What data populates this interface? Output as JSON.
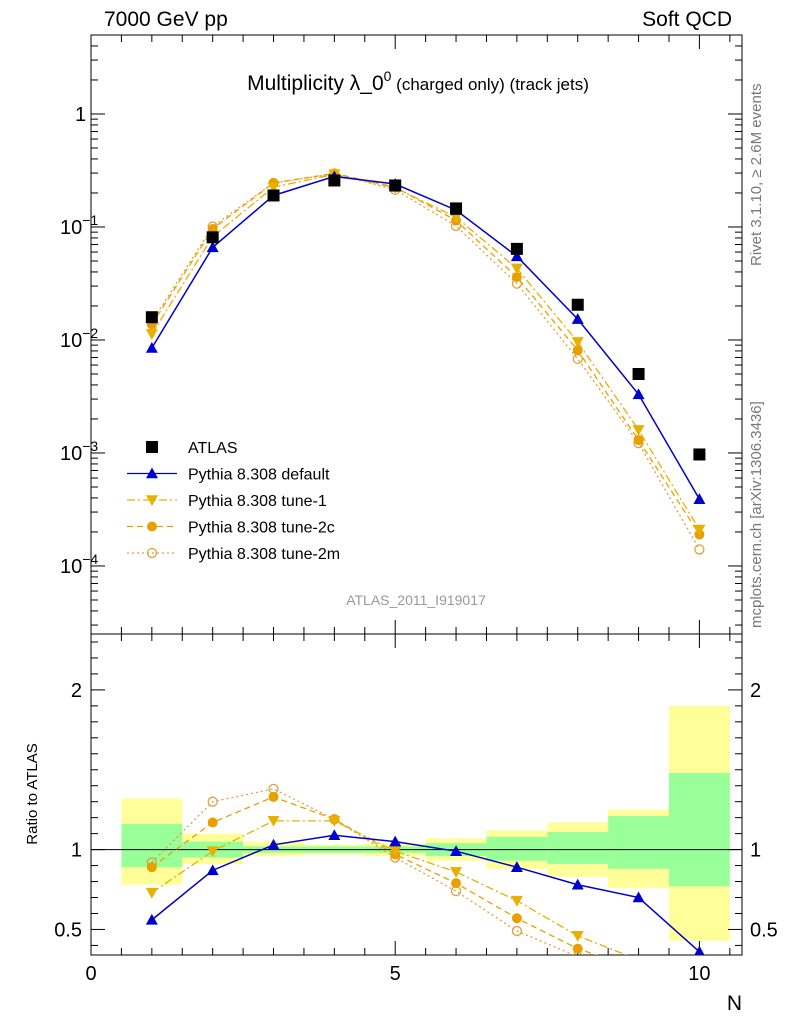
{
  "header": {
    "left": "7000 GeV pp",
    "right": "Soft QCD"
  },
  "side_labels": {
    "rivet": "Rivet 3.1.10, ≥ 2.6M events",
    "mcplots": "mcplots.cern.ch [arXiv:1306.3436]"
  },
  "chart_data": {
    "type": "scatter",
    "title_main": "Multiplicity λ_0",
    "title_sup": "0",
    "title_sub": "(charged only) (track jets)",
    "analysis": "ATLAS_2011_I919017",
    "xlabel": "N",
    "ylabel_ratio": "Ratio to ATLAS",
    "xlim": [
      0,
      10.7
    ],
    "ylim_main": [
      2.5e-05,
      5
    ],
    "ylim_ratio": [
      0.34,
      2.35
    ],
    "yscale_main": "log",
    "x_ticks": [
      "0",
      "5",
      "10"
    ],
    "y_ticks_main": [
      {
        "base": "1",
        "exp": ""
      },
      {
        "base": "10",
        "exp": "−1"
      },
      {
        "base": "10",
        "exp": "−2"
      },
      {
        "base": "10",
        "exp": "−3"
      },
      {
        "base": "10",
        "exp": "−4"
      }
    ],
    "y_ticks_ratio": [
      "0.5",
      "1",
      "2"
    ],
    "legend_position": "bottom-left",
    "x": [
      1,
      2,
      3,
      4,
      5,
      6,
      7,
      8,
      9,
      10
    ],
    "series": [
      {
        "name": "ATLAS",
        "color": "#000000",
        "marker": "square",
        "line": "none",
        "values": [
          0.0159,
          0.081,
          0.19,
          0.258,
          0.233,
          0.146,
          0.064,
          0.0205,
          0.005,
          0.00097
        ],
        "ratio": [
          1,
          1,
          1,
          1,
          1,
          1,
          1,
          1,
          1,
          1
        ]
      },
      {
        "name": "Pythia 8.308 default",
        "color": "#0000cc",
        "marker": "triangle-up",
        "line": "solid",
        "values": [
          0.0085,
          0.066,
          0.19,
          0.28,
          0.24,
          0.141,
          0.055,
          0.0153,
          0.0033,
          0.00039
        ],
        "ratio": [
          0.56,
          0.87,
          1.03,
          1.09,
          1.05,
          0.99,
          0.89,
          0.78,
          0.7,
          0.36
        ]
      },
      {
        "name": "Pythia 8.308 tune-1",
        "color": "#e8b000",
        "marker": "triangle-down",
        "line": "dashdot",
        "values": [
          0.0113,
          0.082,
          0.225,
          0.293,
          0.222,
          0.122,
          0.043,
          0.0096,
          0.0016,
          0.00021
        ],
        "ratio": [
          0.73,
          0.99,
          1.18,
          1.18,
          0.99,
          0.86,
          0.68,
          0.46,
          0.31,
          0.21
        ]
      },
      {
        "name": "Pythia 8.308 tune-2c",
        "color": "#e8a000",
        "marker": "circle",
        "line": "dashed",
        "values": [
          0.0137,
          0.096,
          0.245,
          0.298,
          0.225,
          0.114,
          0.036,
          0.0081,
          0.0013,
          0.00019
        ],
        "ratio": [
          0.89,
          1.17,
          1.33,
          1.19,
          0.97,
          0.79,
          0.57,
          0.38,
          0.25,
          0.19
        ]
      },
      {
        "name": "Pythia 8.308 tune-2m",
        "color": "#e0a040",
        "marker": "open-circle",
        "line": "dotted",
        "values": [
          0.0145,
          0.101,
          0.245,
          0.296,
          0.213,
          0.102,
          0.0315,
          0.0068,
          0.00122,
          0.00014
        ],
        "ratio": [
          0.92,
          1.3,
          1.38,
          1.19,
          0.95,
          0.74,
          0.49,
          0.33,
          0.23,
          0.145
        ]
      }
    ],
    "bands": {
      "bins": [
        [
          0.5,
          1.5
        ],
        [
          1.5,
          2.5
        ],
        [
          2.5,
          3.5
        ],
        [
          3.5,
          4.5
        ],
        [
          4.5,
          5.5
        ],
        [
          5.5,
          6.5
        ],
        [
          6.5,
          7.5
        ],
        [
          7.5,
          8.5
        ],
        [
          8.5,
          9.5
        ],
        [
          9.5,
          10.5
        ]
      ],
      "yellow": [
        [
          0.78,
          1.32
        ],
        [
          0.91,
          1.1
        ],
        [
          0.96,
          1.05
        ],
        [
          0.97,
          1.03
        ],
        [
          0.96,
          1.04
        ],
        [
          0.93,
          1.07
        ],
        [
          0.88,
          1.12
        ],
        [
          0.83,
          1.17
        ],
        [
          0.76,
          1.25
        ],
        [
          0.43,
          1.9
        ]
      ],
      "green": [
        [
          0.89,
          1.16
        ],
        [
          0.95,
          1.05
        ],
        [
          0.98,
          1.02
        ],
        [
          0.98,
          1.02
        ],
        [
          0.98,
          1.02
        ],
        [
          0.96,
          1.04
        ],
        [
          0.93,
          1.08
        ],
        [
          0.91,
          1.11
        ],
        [
          0.88,
          1.21
        ],
        [
          0.77,
          1.48
        ]
      ],
      "colors": {
        "yellow": "#ffff99",
        "green": "#99ff99"
      }
    }
  }
}
